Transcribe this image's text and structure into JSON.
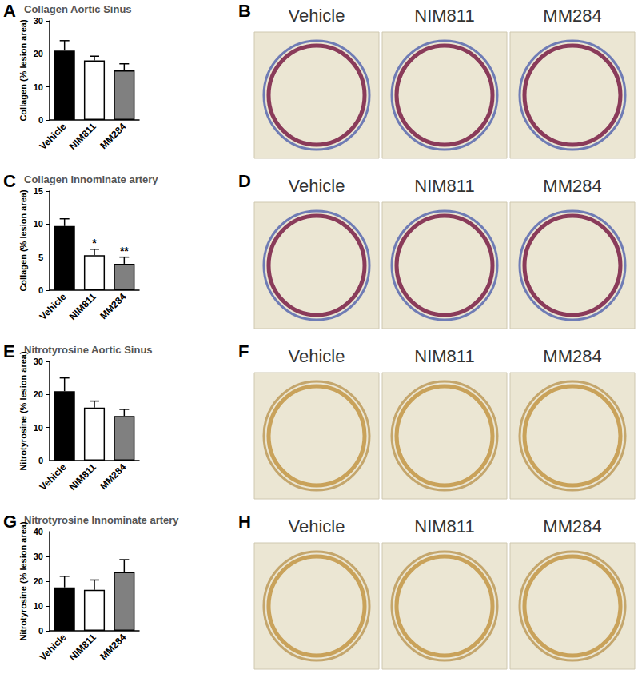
{
  "chart_data": [
    {
      "type": "bar",
      "panel": "A",
      "title": "Collagen Aortic Sinus",
      "y_label": "Collagen (% lesion area)",
      "categories": [
        "Vehicle",
        "NIM811",
        "MM284"
      ],
      "values": [
        21,
        18,
        15
      ],
      "errors": [
        3,
        1.3,
        2
      ],
      "colors": [
        "#000000",
        "#ffffff",
        "#808080"
      ],
      "ylim": [
        0,
        30
      ],
      "yticks": [
        0,
        10,
        20,
        30
      ],
      "grid": false
    },
    {
      "type": "bar",
      "panel": "C",
      "title": "Collagen Innominate artery",
      "y_label": "Collagen (% lesion area)",
      "categories": [
        "Vehicle",
        "NIM811",
        "MM284"
      ],
      "values": [
        9.7,
        5.3,
        4.0
      ],
      "errors": [
        1.1,
        0.9,
        1.0
      ],
      "significance": [
        null,
        "*",
        "**"
      ],
      "colors": [
        "#000000",
        "#ffffff",
        "#808080"
      ],
      "ylim": [
        0,
        15
      ],
      "yticks": [
        0,
        5,
        10,
        15
      ],
      "grid": false
    },
    {
      "type": "bar",
      "panel": "E",
      "title": "Nitrotyrosine Aortic Sinus",
      "y_label": "Nitrotyrosine (% lesion area)",
      "categories": [
        "Vehicle",
        "NIM811",
        "MM284"
      ],
      "values": [
        21,
        16,
        13.5
      ],
      "errors": [
        4,
        2,
        2
      ],
      "colors": [
        "#000000",
        "#ffffff",
        "#808080"
      ],
      "ylim": [
        0,
        30
      ],
      "yticks": [
        0,
        10,
        20,
        30
      ],
      "grid": false
    },
    {
      "type": "bar",
      "panel": "G",
      "title": "Nitrotyrosine Innominate artery",
      "y_label": "Nitrotyrosine (% lesion area)",
      "categories": [
        "Vehicle",
        "NIM811",
        "MM284"
      ],
      "values": [
        17.5,
        16.5,
        23.7
      ],
      "errors": [
        4.5,
        4,
        5
      ],
      "colors": [
        "#000000",
        "#ffffff",
        "#808080"
      ],
      "ylim": [
        0,
        40
      ],
      "yticks": [
        0,
        10,
        20,
        30,
        40
      ],
      "grid": false
    }
  ],
  "image_panels": [
    {
      "panel": "B",
      "labels": [
        "Vehicle",
        "NIM811",
        "MM284"
      ]
    },
    {
      "panel": "D",
      "labels": [
        "Vehicle",
        "NIM811",
        "MM284"
      ]
    },
    {
      "panel": "F",
      "labels": [
        "Vehicle",
        "NIM811",
        "MM284"
      ]
    },
    {
      "panel": "H",
      "labels": [
        "Vehicle",
        "NIM811",
        "MM284"
      ]
    }
  ]
}
